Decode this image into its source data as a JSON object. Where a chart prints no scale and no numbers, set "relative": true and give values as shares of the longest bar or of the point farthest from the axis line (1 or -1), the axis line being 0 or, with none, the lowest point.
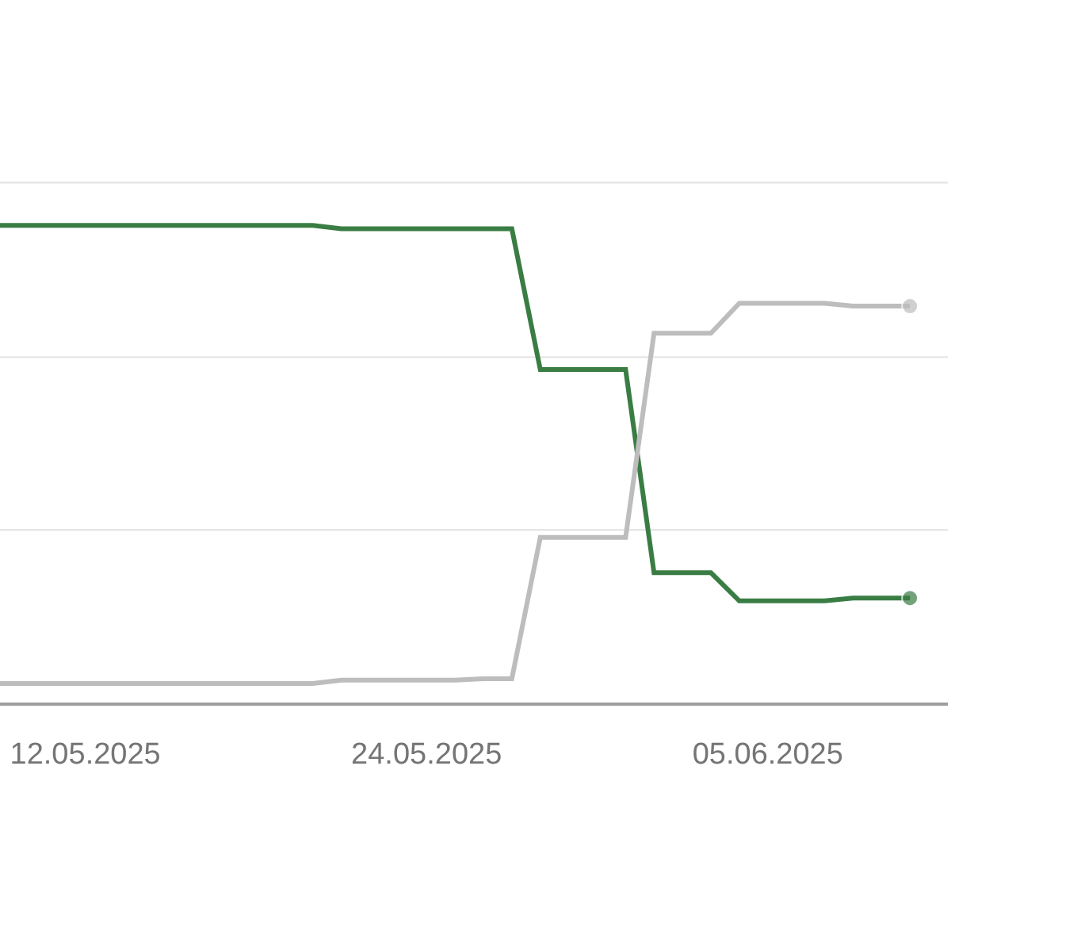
{
  "chart_data": {
    "type": "line",
    "relative": true,
    "ref_lines": [
      {
        "axis": "y",
        "value": 0.362,
        "color": "#e6e6e6"
      },
      {
        "axis": "y",
        "value": 0.724,
        "color": "#e6e6e6"
      },
      {
        "axis": "y",
        "value": 1.09,
        "color": "#e6e6e6"
      }
    ],
    "x": [
      "2025-05-09",
      "2025-05-10",
      "2025-05-11",
      "2025-05-12",
      "2025-05-13",
      "2025-05-14",
      "2025-05-15",
      "2025-05-16",
      "2025-05-17",
      "2025-05-18",
      "2025-05-19",
      "2025-05-20",
      "2025-05-21",
      "2025-05-22",
      "2025-05-23",
      "2025-05-24",
      "2025-05-25",
      "2025-05-26",
      "2025-05-27",
      "2025-05-28",
      "2025-05-29",
      "2025-05-30",
      "2025-05-31",
      "2025-06-01",
      "2025-06-02",
      "2025-06-03",
      "2025-06-04",
      "2025-06-05",
      "2025-06-06",
      "2025-06-07",
      "2025-06-08",
      "2025-06-09",
      "2025-06-10"
    ],
    "xlim": [
      "2025-05-09",
      "2025-06-11T08:00"
    ],
    "xticks": [
      {
        "value": "2025-05-12",
        "label": "12.05.2025"
      },
      {
        "value": "2025-05-24",
        "label": "24.05.2025"
      },
      {
        "value": "2025-06-05",
        "label": "05.06.2025"
      }
    ],
    "series": [
      {
        "color": "#3a7d44",
        "values": [
          1.0,
          1.0,
          1.0,
          1.0,
          1.0,
          1.0,
          1.0,
          1.0,
          1.0,
          1.0,
          1.0,
          1.0,
          0.993,
          0.993,
          0.993,
          0.993,
          0.993,
          0.993,
          0.993,
          0.698,
          0.698,
          0.698,
          0.698,
          0.272,
          0.272,
          0.272,
          0.213,
          0.213,
          0.213,
          0.213,
          0.219,
          0.219,
          0.219
        ]
      },
      {
        "color": "#bdbdbd",
        "values": [
          0.04,
          0.04,
          0.04,
          0.04,
          0.04,
          0.04,
          0.04,
          0.04,
          0.04,
          0.04,
          0.04,
          0.04,
          0.047,
          0.047,
          0.047,
          0.047,
          0.047,
          0.05,
          0.05,
          0.346,
          0.346,
          0.346,
          0.346,
          0.774,
          0.774,
          0.774,
          0.837,
          0.837,
          0.837,
          0.837,
          0.831,
          0.831,
          0.831
        ]
      }
    ]
  }
}
